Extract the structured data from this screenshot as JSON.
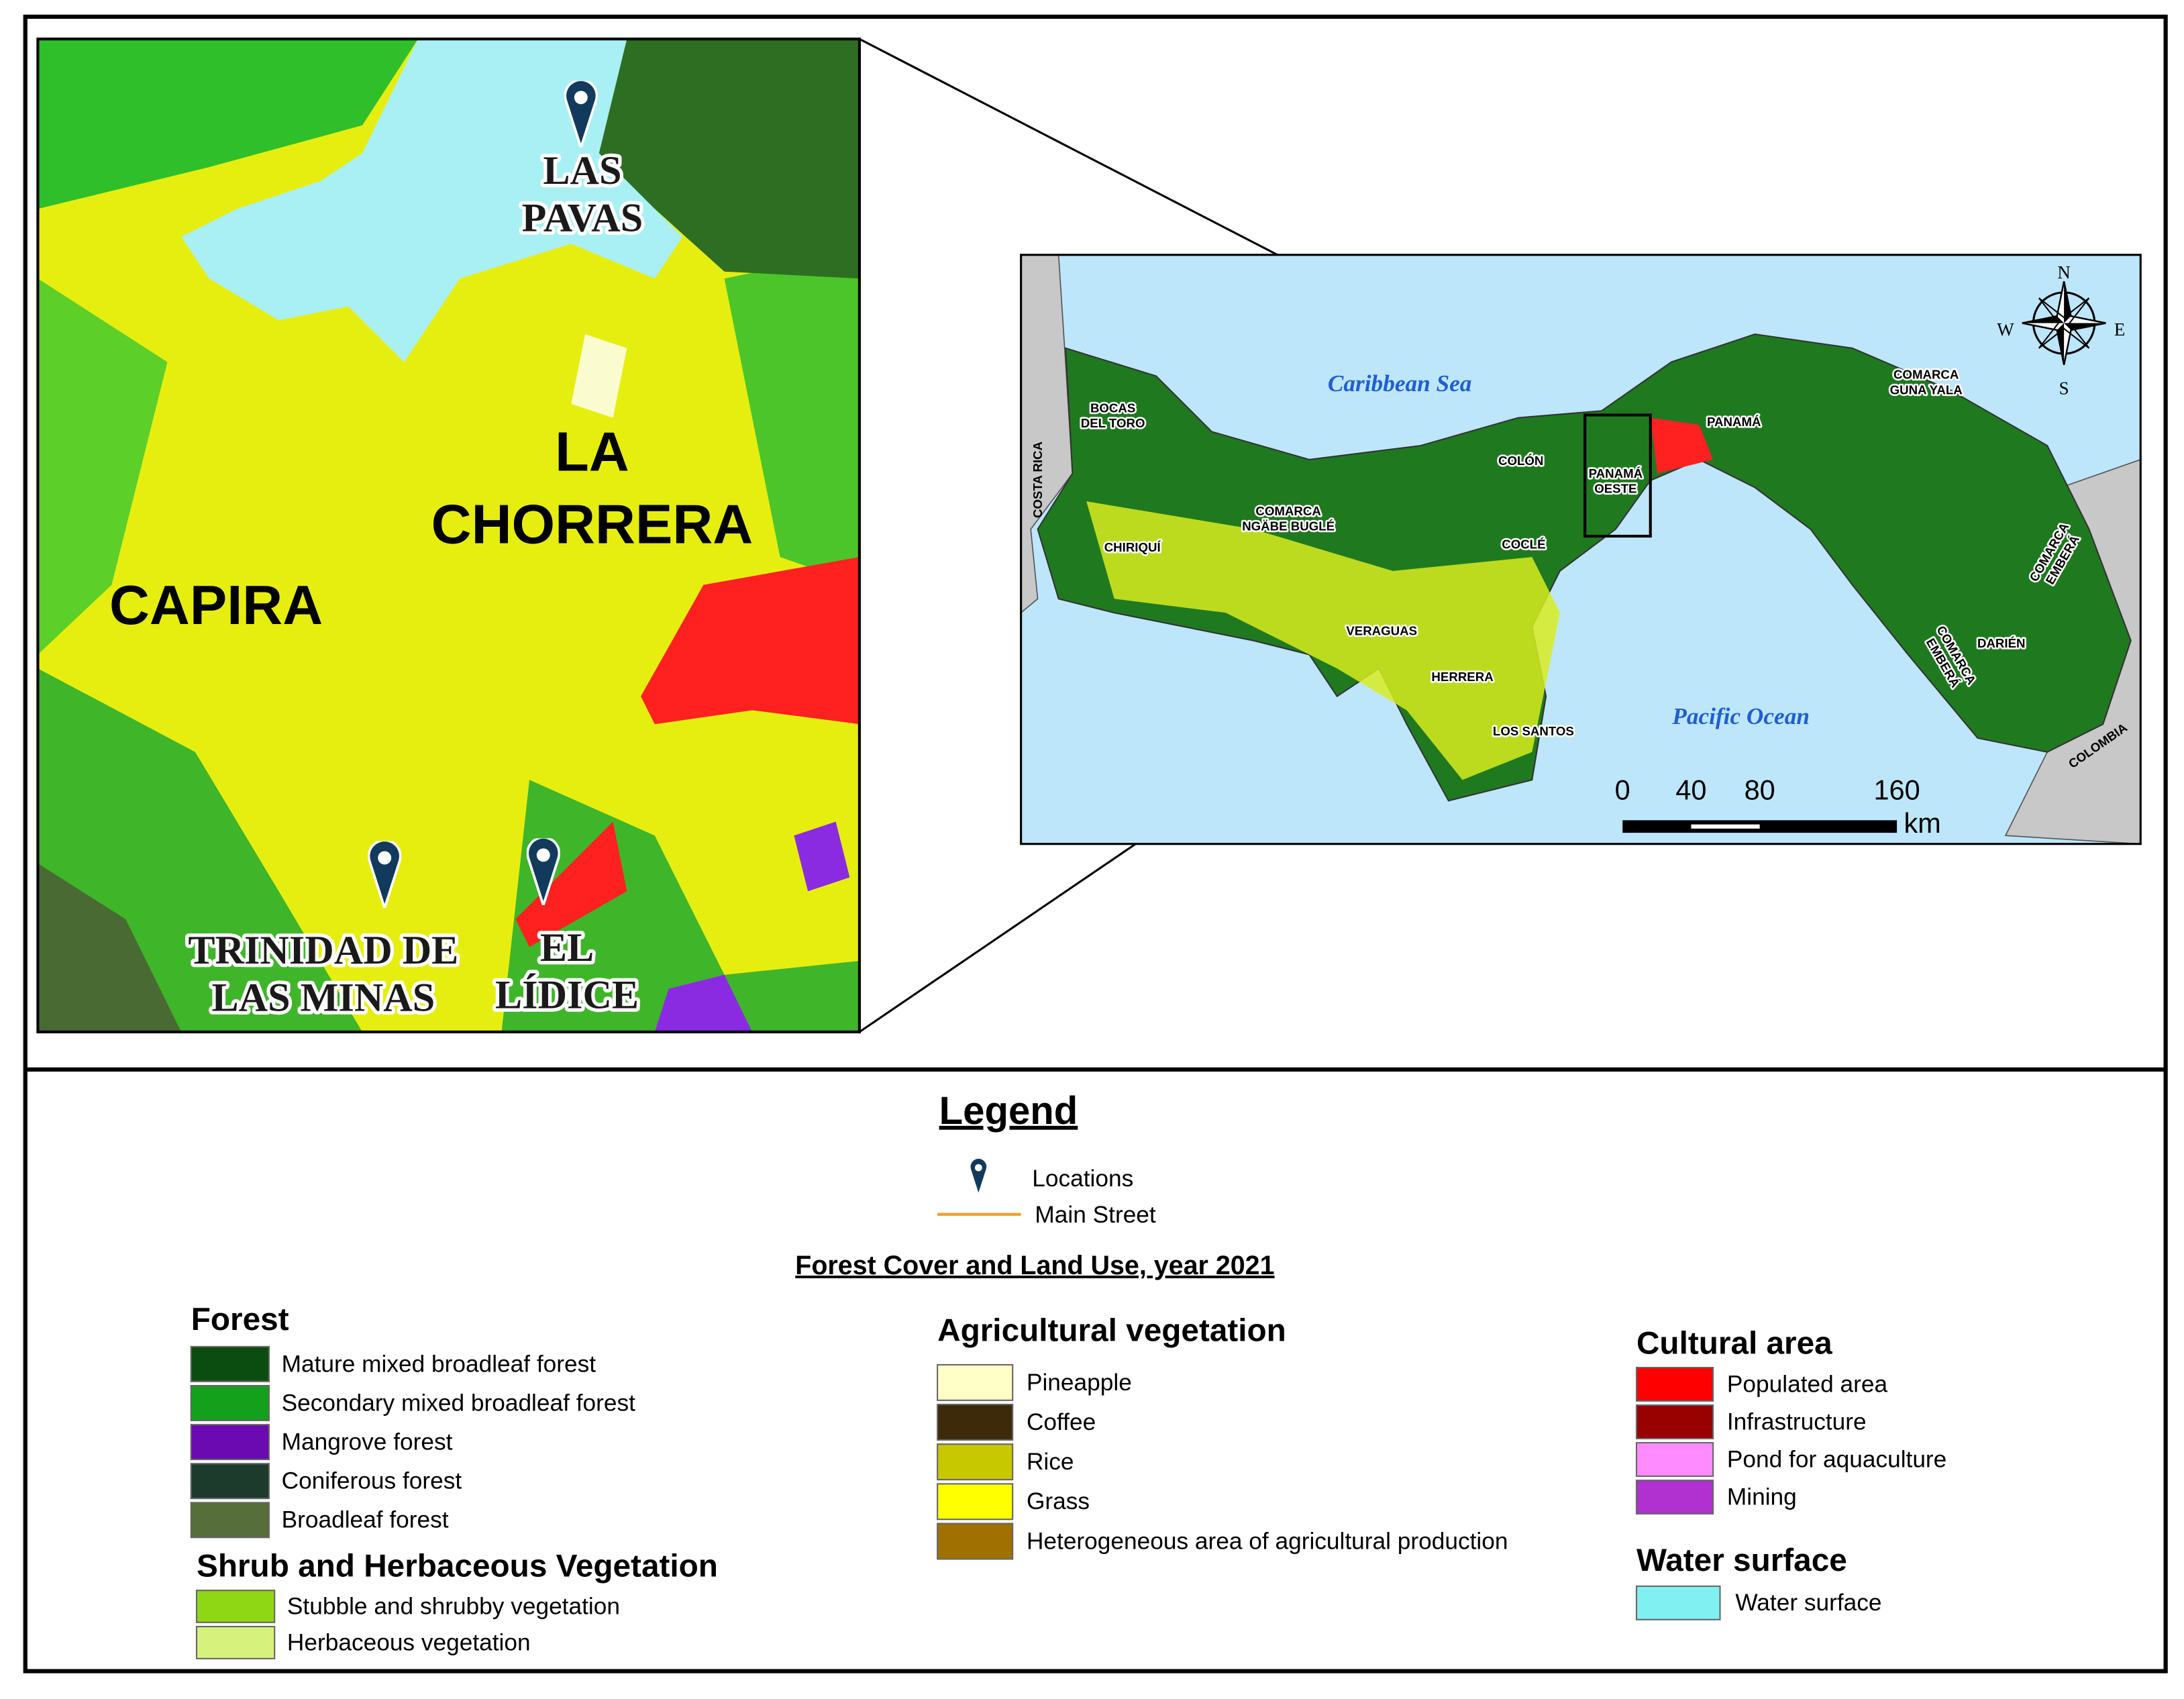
{
  "inset_map": {
    "places": [
      {
        "lines": [
          "LAS",
          "PAVAS"
        ]
      },
      {
        "lines": [
          "TRINIDAD DE",
          "LAS MINAS"
        ]
      },
      {
        "lines": [
          "EL",
          "LÍDICE"
        ]
      }
    ],
    "districts": [
      {
        "lines": [
          "LA",
          "CHORRERA"
        ]
      },
      {
        "lines": [
          "CAPIRA"
        ]
      }
    ]
  },
  "overview_map": {
    "seas": [
      "Caribbean Sea",
      "Pacific Ocean"
    ],
    "countries": [
      "COSTA RICA",
      "COLOMBIA"
    ],
    "regions": [
      {
        "lines": [
          "BOCAS",
          "DEL TORO"
        ]
      },
      {
        "lines": [
          "CHIRIQUÍ"
        ]
      },
      {
        "lines": [
          "COMARCA",
          "NGÄBE BUGLÉ"
        ]
      },
      {
        "lines": [
          "COLÓN"
        ]
      },
      {
        "lines": [
          "COCLÉ"
        ]
      },
      {
        "lines": [
          "VERAGUAS"
        ]
      },
      {
        "lines": [
          "HERRERA"
        ]
      },
      {
        "lines": [
          "LOS SANTOS"
        ]
      },
      {
        "lines": [
          "PANAMÁ",
          "OESTE"
        ]
      },
      {
        "lines": [
          "PANAMÁ"
        ]
      },
      {
        "lines": [
          "COMARCA",
          "GUNA YALA"
        ]
      },
      {
        "lines": [
          "COMARCA",
          "EMBERÁ"
        ]
      },
      {
        "lines": [
          "DARIÉN"
        ]
      },
      {
        "lines": [
          "COMARCA",
          "EMBERÁ"
        ]
      }
    ],
    "compass": {
      "north": "N",
      "south": "S",
      "west": "W",
      "east": "E"
    },
    "scale": {
      "ticks": [
        0,
        40,
        80,
        160
      ],
      "unit": "km"
    }
  },
  "legend": {
    "title": "Legend",
    "symbols": [
      {
        "label": "Locations"
      },
      {
        "label": "Main Street"
      }
    ],
    "subtitle": "Forest Cover and Land Use, year 2021",
    "groups": [
      {
        "title": "Forest",
        "items": [
          {
            "label": "Mature mixed broadleaf forest",
            "color": "#0b4d10"
          },
          {
            "label": "Secondary mixed broadleaf forest",
            "color": "#13a01b"
          },
          {
            "label": "Mangrove forest",
            "color": "#6a0ab0"
          },
          {
            "label": "Coniferous forest",
            "color": "#1c3b2c"
          },
          {
            "label": "Broadleaf forest",
            "color": "#566f3a"
          }
        ]
      },
      {
        "title": "Shrub and Herbaceous Vegetation",
        "items": [
          {
            "label": "Stubble and shrubby vegetation",
            "color": "#8fd614"
          },
          {
            "label": "Herbaceous vegetation",
            "color": "#d6f27c"
          }
        ]
      },
      {
        "title": "Agricultural vegetation",
        "items": [
          {
            "label": "Pineapple",
            "color": "#ffffc8"
          },
          {
            "label": "Coffee",
            "color": "#3d2a0a"
          },
          {
            "label": "Rice",
            "color": "#c8c800"
          },
          {
            "label": "Grass",
            "color": "#ffff00"
          },
          {
            "label": "Heterogeneous area of agricultural production",
            "color": "#a07000"
          }
        ]
      },
      {
        "title": "Cultural area",
        "items": [
          {
            "label": "Populated area",
            "color": "#ff0000"
          },
          {
            "label": "Infrastructure",
            "color": "#990000"
          },
          {
            "label": "Pond for aquaculture",
            "color": "#ff8cff"
          },
          {
            "label": "Mining",
            "color": "#b030d0"
          }
        ]
      },
      {
        "title": "Water surface",
        "items": [
          {
            "label": "Water surface",
            "color": "#80f0f0"
          }
        ]
      }
    ]
  }
}
